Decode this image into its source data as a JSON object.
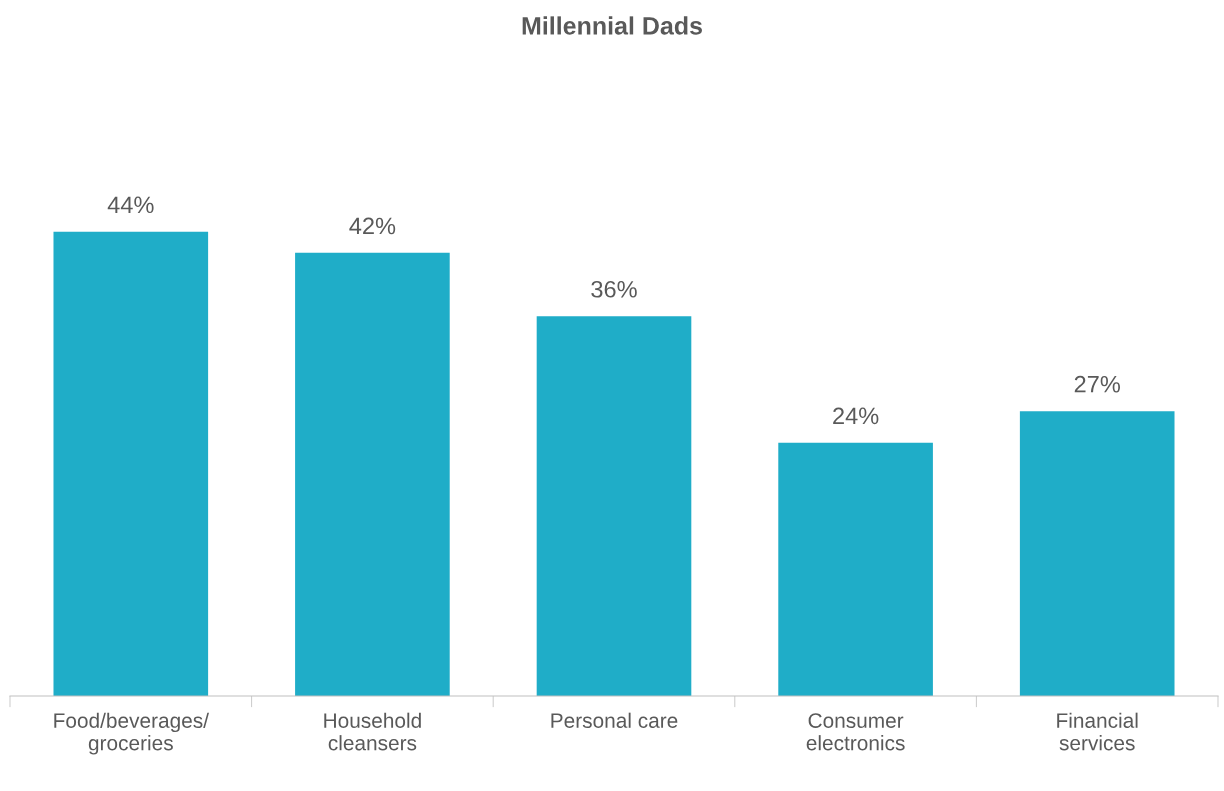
{
  "chart_data": {
    "type": "bar",
    "title": "Millennial Dads",
    "categories": [
      "Food/beverages/\ngroceries",
      "Household\ncleansers",
      "Personal care",
      "Consumer\nelectronics",
      "Financial\nservices"
    ],
    "values": [
      44,
      42,
      36,
      24,
      27
    ],
    "value_labels": [
      "44%",
      "42%",
      "36%",
      "24%",
      "27%"
    ],
    "color": "#1fadc8",
    "grid": false,
    "legend": false
  }
}
